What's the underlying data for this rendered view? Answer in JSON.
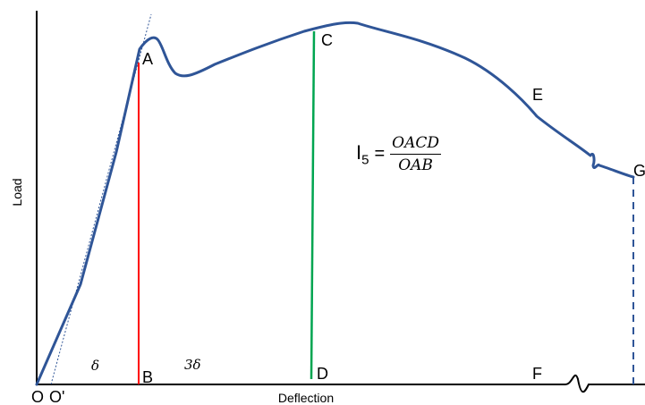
{
  "chart_data": {
    "type": "line",
    "title": "",
    "xlabel": "Deflection",
    "ylabel": "Load",
    "point_labels": [
      "A",
      "B",
      "C",
      "D",
      "E",
      "F",
      "G"
    ],
    "origin_labels": [
      "O",
      "O'"
    ],
    "interval_labels": [
      "δ",
      "3δ"
    ],
    "formula": {
      "lhs": "I",
      "sub": "5",
      "eq": "=",
      "numerator": "OACD",
      "denominator": "OAB"
    },
    "colors": {
      "curve": "#2f5597",
      "line_AB": "#ff0000",
      "line_CD": "#00a550",
      "line_G": "#2f5597",
      "axes": "#000000"
    }
  }
}
